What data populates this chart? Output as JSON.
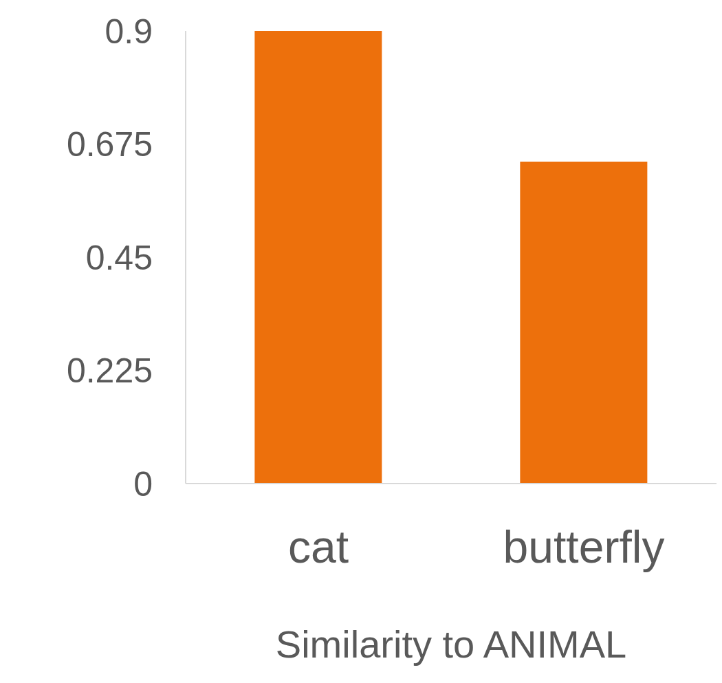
{
  "chart_data": {
    "type": "bar",
    "xlabel": "Similarity to ANIMAL",
    "categories": [
      "cat",
      "butterfly"
    ],
    "values": [
      0.9,
      0.64
    ],
    "color": "#ed700c",
    "ylim": [
      0,
      0.9
    ],
    "yticks": [
      0,
      0.225,
      0.45,
      0.675,
      0.9
    ],
    "grid": false
  }
}
